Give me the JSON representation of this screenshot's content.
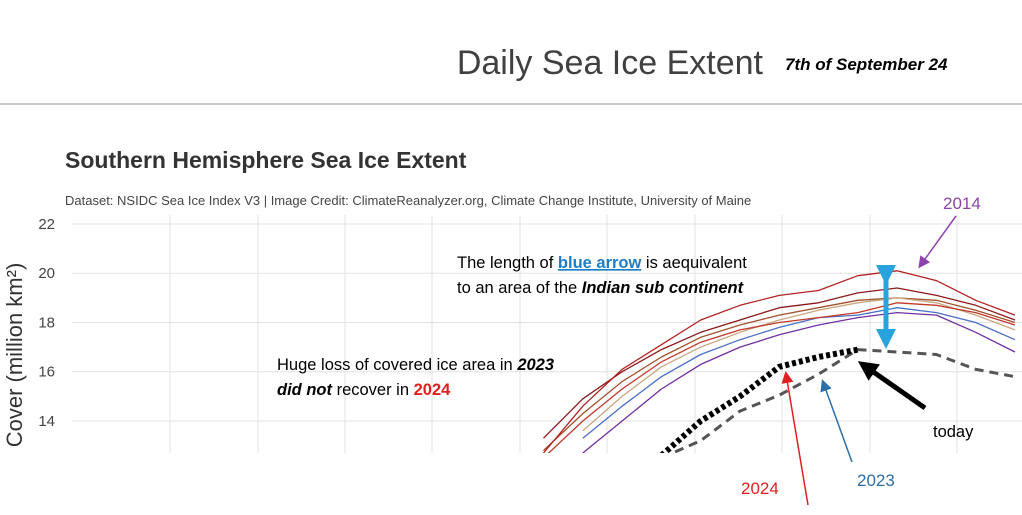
{
  "slide_title": "Daily Sea Ice Extent",
  "slide_date": "7th of September 24",
  "chart_data": {
    "type": "line",
    "title": "Southern Hemisphere Sea Ice Extent",
    "subtitle": "Dataset: NSIDC Sea Ice Index V3 | Image Credit: ClimateReanalyzer.org, Climate Change Institute, University of Maine",
    "y_label": "Cover (million km²)",
    "ylim": [
      12.7,
      22
    ],
    "yticks": [
      14,
      16,
      18,
      20,
      22
    ],
    "grid": true,
    "categories": [
      null,
      null,
      null,
      null,
      null,
      null,
      null,
      null,
      null,
      null,
      null,
      null,
      null,
      null,
      null,
      null,
      null,
      null,
      null,
      null,
      null,
      null,
      null,
      null,
      null
    ],
    "series": [
      {
        "color": "#7030a0",
        "style": "solid",
        "values": [
          null,
          null,
          null,
          null,
          null,
          null,
          null,
          null,
          null,
          null,
          null,
          null,
          null,
          12.7,
          14.0,
          15.3,
          16.3,
          17.0,
          17.5,
          17.9,
          18.2,
          18.4,
          18.3,
          17.6,
          16.8
        ]
      },
      {
        "color": "#a0522d",
        "style": "solid",
        "values": [
          null,
          null,
          null,
          null,
          null,
          null,
          null,
          null,
          null,
          null,
          null,
          null,
          12.8,
          14.3,
          15.6,
          16.6,
          17.4,
          17.9,
          18.3,
          18.6,
          18.9,
          19.0,
          18.9,
          18.5,
          18.0
        ]
      },
      {
        "color": "#c8a882",
        "style": "solid",
        "values": [
          null,
          null,
          null,
          null,
          null,
          null,
          null,
          null,
          null,
          null,
          null,
          null,
          null,
          13.6,
          15.0,
          16.2,
          17.0,
          17.6,
          18.1,
          18.5,
          18.8,
          19.0,
          18.8,
          18.3,
          17.7
        ]
      },
      {
        "color": "#4a6fc4",
        "style": "solid",
        "values": [
          null,
          null,
          null,
          null,
          null,
          null,
          null,
          null,
          null,
          null,
          null,
          null,
          null,
          13.3,
          14.6,
          15.8,
          16.7,
          17.3,
          17.8,
          18.2,
          18.3,
          18.6,
          18.4,
          18.0,
          17.3
        ]
      },
      {
        "color": "#8b1a1a",
        "style": "solid",
        "values": [
          null,
          null,
          null,
          null,
          null,
          null,
          null,
          null,
          null,
          null,
          null,
          null,
          13.3,
          14.9,
          16.0,
          16.9,
          17.6,
          18.1,
          18.6,
          18.8,
          19.2,
          19.4,
          19.1,
          18.7,
          18.1
        ]
      },
      {
        "color": "#c0392b",
        "style": "solid",
        "values": [
          null,
          null,
          null,
          null,
          null,
          null,
          null,
          null,
          null,
          null,
          null,
          null,
          12.5,
          14.0,
          15.3,
          16.4,
          17.2,
          17.7,
          18.0,
          18.2,
          18.4,
          18.8,
          18.7,
          18.4,
          17.9
        ]
      },
      {
        "name": "2014",
        "color": "#b22222",
        "style": "solid",
        "values": [
          null,
          null,
          null,
          null,
          null,
          null,
          null,
          null,
          null,
          null,
          null,
          null,
          12.7,
          14.6,
          16.1,
          17.1,
          18.1,
          18.7,
          19.1,
          19.3,
          19.9,
          20.1,
          19.7,
          18.9,
          18.3
        ]
      },
      {
        "name": "2023",
        "color": "#555555",
        "style": "dashed",
        "values": [
          null,
          null,
          null,
          null,
          null,
          null,
          null,
          null,
          null,
          null,
          null,
          null,
          null,
          null,
          null,
          12.5,
          13.2,
          14.4,
          15.05,
          15.9,
          16.9,
          16.8,
          16.7,
          16.1,
          15.8
        ]
      },
      {
        "name": "2024",
        "color": "#000000",
        "style": "dotted",
        "values": [
          null,
          null,
          null,
          null,
          null,
          null,
          null,
          null,
          null,
          null,
          null,
          null,
          null,
          null,
          null,
          12.6,
          14.0,
          15.0,
          16.2,
          16.6,
          16.9,
          null,
          null,
          null,
          null
        ]
      }
    ],
    "note_arrow": [
      [
        "The length of ",
        "blue arrow",
        " is aequivalent"
      ],
      [
        "to an area of the ",
        "Indian sub continent"
      ]
    ],
    "note_loss": [
      [
        "Huge loss of covered ice area in ",
        "2023"
      ],
      [
        "did not",
        " recover in ",
        "2024"
      ]
    ],
    "label_today": "today"
  }
}
